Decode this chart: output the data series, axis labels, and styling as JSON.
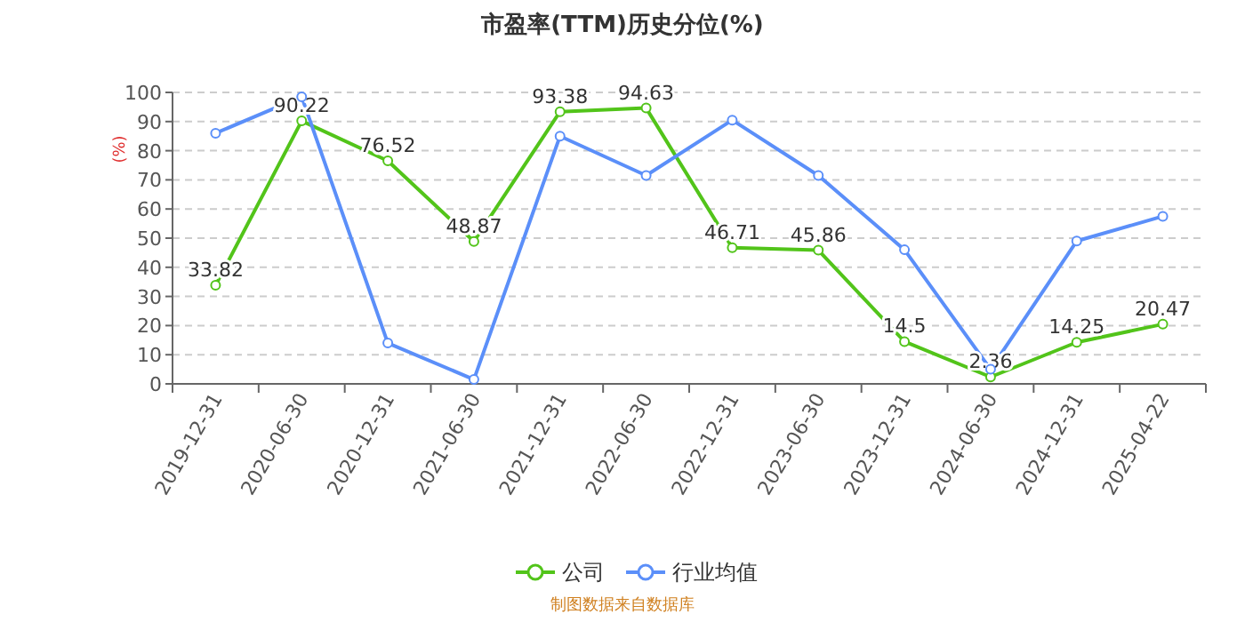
{
  "chart_data": {
    "type": "line",
    "title": "市盈率(TTM)历史分位(%)",
    "ylabel": "(%)",
    "categories": [
      "2019-12-31",
      "2020-06-30",
      "2020-12-31",
      "2021-06-30",
      "2021-12-31",
      "2022-06-30",
      "2022-12-31",
      "2023-06-30",
      "2023-12-31",
      "2024-06-30",
      "2024-12-31",
      "2025-04-22"
    ],
    "series": [
      {
        "name": "公司",
        "color": "#52c41a",
        "values": [
          33.82,
          90.22,
          76.52,
          48.87,
          93.38,
          94.63,
          46.71,
          45.86,
          14.5,
          2.36,
          14.25,
          20.47
        ],
        "value_labels": [
          "33.82",
          "90.22",
          "76.52",
          "48.87",
          "93.38",
          "94.63",
          "46.71",
          "45.86",
          "14.5",
          "2.36",
          "14.25",
          "20.47"
        ]
      },
      {
        "name": "行业均值",
        "color": "#5b8ff9",
        "values": [
          86,
          98.5,
          14,
          1.5,
          85,
          71.5,
          90.5,
          71.5,
          46,
          5,
          49,
          57.5
        ]
      }
    ],
    "ylim": [
      0,
      100
    ],
    "yticks": [
      0,
      10,
      20,
      30,
      40,
      50,
      60,
      70,
      80,
      90,
      100
    ],
    "grid": "y",
    "legend": "bottom",
    "marker": "circle",
    "annotations": [
      "制图数据来自数据库"
    ]
  }
}
